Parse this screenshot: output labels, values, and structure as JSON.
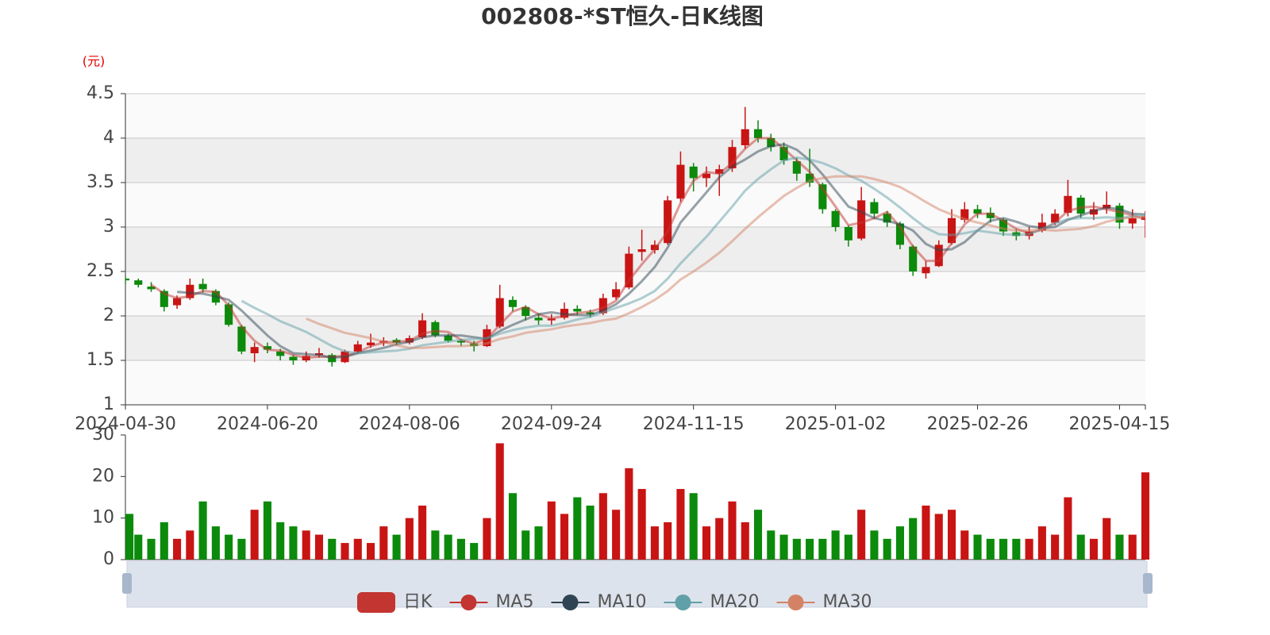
{
  "chart_data": [
    {
      "type": "candlestick",
      "title": "002808-*ST恒久-日K线图",
      "y_label": "(元)",
      "categories": [
        "2024-04-30",
        null,
        null,
        null,
        null,
        null,
        null,
        null,
        null,
        null,
        null,
        "2024-06-20",
        null,
        null,
        null,
        null,
        null,
        null,
        null,
        null,
        null,
        null,
        "2024-08-06",
        null,
        null,
        null,
        null,
        null,
        null,
        null,
        null,
        null,
        null,
        "2024-09-24",
        null,
        null,
        null,
        null,
        null,
        null,
        null,
        null,
        null,
        null,
        "2024-11-15",
        null,
        null,
        null,
        null,
        null,
        null,
        null,
        null,
        null,
        null,
        "2025-01-02",
        null,
        null,
        null,
        null,
        null,
        null,
        null,
        null,
        null,
        null,
        "2025-02-26",
        null,
        null,
        null,
        null,
        null,
        null,
        null,
        null,
        null,
        null,
        "2025-04-15",
        null,
        null
      ],
      "ylim": [
        1,
        4.5
      ],
      "yticks": [
        1,
        1.5,
        2,
        2.5,
        3,
        3.5,
        4,
        4.5
      ],
      "grid": true,
      "split_area": true,
      "up_color": "#c91414",
      "down_color": "#0b8a0b",
      "series": [
        {
          "name": "日K",
          "color": "#c23531",
          "values": [
            [
              2.42,
              2.4,
              2.35,
              2.45
            ],
            [
              2.4,
              2.35,
              2.32,
              2.42
            ],
            [
              2.33,
              2.3,
              2.27,
              2.38
            ],
            [
              2.28,
              2.1,
              2.05,
              2.3
            ],
            [
              2.12,
              2.2,
              2.08,
              2.23
            ],
            [
              2.2,
              2.35,
              2.18,
              2.42
            ],
            [
              2.36,
              2.3,
              2.26,
              2.42
            ],
            [
              2.28,
              2.15,
              2.12,
              2.3
            ],
            [
              2.13,
              1.9,
              1.88,
              2.15
            ],
            [
              1.88,
              1.6,
              1.57,
              1.9
            ],
            [
              1.58,
              1.65,
              1.48,
              1.7
            ],
            [
              1.66,
              1.62,
              1.58,
              1.7
            ],
            [
              1.6,
              1.55,
              1.5,
              1.63
            ],
            [
              1.54,
              1.5,
              1.45,
              1.56
            ],
            [
              1.5,
              1.55,
              1.48,
              1.6
            ],
            [
              1.56,
              1.58,
              1.53,
              1.64
            ],
            [
              1.56,
              1.48,
              1.43,
              1.58
            ],
            [
              1.48,
              1.6,
              1.47,
              1.62
            ],
            [
              1.6,
              1.68,
              1.58,
              1.72
            ],
            [
              1.67,
              1.7,
              1.64,
              1.8
            ],
            [
              1.7,
              1.72,
              1.66,
              1.76
            ],
            [
              1.73,
              1.7,
              1.67,
              1.75
            ],
            [
              1.7,
              1.75,
              1.68,
              1.78
            ],
            [
              1.76,
              1.95,
              1.74,
              2.03
            ],
            [
              1.93,
              1.78,
              1.76,
              1.95
            ],
            [
              1.78,
              1.72,
              1.7,
              1.8
            ],
            [
              1.72,
              1.7,
              1.66,
              1.74
            ],
            [
              1.69,
              1.66,
              1.6,
              1.72
            ],
            [
              1.66,
              1.85,
              1.65,
              1.9
            ],
            [
              1.88,
              2.2,
              1.86,
              2.35
            ],
            [
              2.18,
              2.1,
              2.05,
              2.22
            ],
            [
              2.1,
              2.0,
              1.95,
              2.12
            ],
            [
              1.98,
              1.95,
              1.9,
              2.02
            ],
            [
              1.95,
              1.97,
              1.9,
              2.02
            ],
            [
              1.98,
              2.08,
              1.96,
              2.15
            ],
            [
              2.08,
              2.05,
              2.01,
              2.12
            ],
            [
              2.04,
              2.02,
              1.98,
              2.07
            ],
            [
              2.03,
              2.2,
              2.01,
              2.25
            ],
            [
              2.21,
              2.3,
              2.18,
              2.38
            ],
            [
              2.32,
              2.7,
              2.3,
              2.78
            ],
            [
              2.72,
              2.75,
              2.62,
              2.97
            ],
            [
              2.74,
              2.8,
              2.7,
              2.85
            ],
            [
              2.82,
              3.3,
              2.8,
              3.35
            ],
            [
              3.32,
              3.7,
              3.28,
              3.85
            ],
            [
              3.68,
              3.55,
              3.4,
              3.72
            ],
            [
              3.55,
              3.6,
              3.45,
              3.68
            ],
            [
              3.6,
              3.65,
              3.35,
              3.7
            ],
            [
              3.66,
              3.9,
              3.62,
              3.98
            ],
            [
              3.92,
              4.1,
              3.88,
              4.35
            ],
            [
              4.1,
              4.0,
              3.95,
              4.2
            ],
            [
              4.0,
              3.9,
              3.85,
              4.05
            ],
            [
              3.9,
              3.75,
              3.7,
              3.95
            ],
            [
              3.74,
              3.6,
              3.52,
              3.78
            ],
            [
              3.6,
              3.5,
              3.45,
              3.88
            ],
            [
              3.48,
              3.2,
              3.15,
              3.5
            ],
            [
              3.18,
              3.0,
              2.95,
              3.2
            ],
            [
              3.0,
              2.85,
              2.78,
              3.02
            ],
            [
              2.87,
              3.3,
              2.85,
              3.45
            ],
            [
              3.28,
              3.15,
              3.1,
              3.32
            ],
            [
              3.15,
              3.05,
              3.0,
              3.18
            ],
            [
              3.04,
              2.8,
              2.75,
              3.06
            ],
            [
              2.78,
              2.5,
              2.45,
              2.8
            ],
            [
              2.48,
              2.55,
              2.42,
              2.62
            ],
            [
              2.56,
              2.8,
              2.55,
              2.85
            ],
            [
              2.82,
              3.1,
              2.8,
              3.2
            ],
            [
              3.08,
              3.2,
              3.05,
              3.28
            ],
            [
              3.2,
              3.15,
              3.1,
              3.25
            ],
            [
              3.16,
              3.1,
              3.05,
              3.22
            ],
            [
              3.08,
              2.95,
              2.9,
              3.1
            ],
            [
              2.94,
              2.9,
              2.85,
              2.98
            ],
            [
              2.9,
              2.95,
              2.86,
              3.0
            ],
            [
              2.96,
              3.05,
              2.94,
              3.15
            ],
            [
              3.05,
              3.15,
              3.02,
              3.2
            ],
            [
              3.16,
              3.35,
              3.12,
              3.53
            ],
            [
              3.33,
              3.15,
              3.1,
              3.36
            ],
            [
              3.14,
              3.2,
              3.08,
              3.28
            ],
            [
              3.21,
              3.25,
              3.15,
              3.4
            ],
            [
              3.24,
              3.05,
              2.98,
              3.27
            ],
            [
              3.04,
              3.1,
              2.98,
              3.2
            ],
            [
              3.08,
              3.12,
              2.88,
              3.18
            ]
          ]
        },
        {
          "name": "MA5",
          "color": "#c23531",
          "values": [
            null,
            null,
            2.35,
            2.25,
            2.2,
            2.22,
            2.28,
            2.27,
            2.12,
            1.88,
            1.72,
            1.62,
            1.61,
            1.56,
            1.53,
            1.54,
            1.54,
            1.55,
            1.59,
            1.66,
            1.7,
            1.71,
            1.72,
            1.8,
            1.83,
            1.82,
            1.73,
            1.69,
            1.74,
            1.9,
            2.05,
            2.1,
            2.02,
            1.97,
            2.0,
            2.03,
            2.05,
            2.09,
            2.17,
            2.4,
            2.58,
            2.75,
            2.95,
            3.27,
            3.52,
            3.62,
            3.6,
            3.72,
            3.88,
            4.0,
            4.0,
            3.88,
            3.75,
            3.62,
            3.43,
            3.23,
            3.02,
            3.05,
            3.1,
            3.17,
            3.0,
            2.78,
            2.62,
            2.62,
            2.82,
            3.03,
            3.15,
            3.15,
            3.07,
            2.98,
            2.93,
            2.97,
            3.05,
            3.18,
            3.22,
            3.23,
            3.2,
            3.17,
            3.13,
            3.09
          ]
        },
        {
          "name": "MA10",
          "color": "#2f4554",
          "values": [
            null,
            null,
            null,
            null,
            2.27,
            2.26,
            2.25,
            2.22,
            2.18,
            2.06,
            1.92,
            1.78,
            1.66,
            1.58,
            1.57,
            1.56,
            1.53,
            1.54,
            1.58,
            1.61,
            1.64,
            1.68,
            1.71,
            1.76,
            1.78,
            1.78,
            1.78,
            1.76,
            1.74,
            1.83,
            1.9,
            1.96,
            2.02,
            2.04,
            2.02,
            2.01,
            2.01,
            2.06,
            2.13,
            2.25,
            2.39,
            2.55,
            2.77,
            3.05,
            3.22,
            3.39,
            3.56,
            3.68,
            3.76,
            3.85,
            3.91,
            3.93,
            3.87,
            3.75,
            3.59,
            3.41,
            3.23,
            3.17,
            3.1,
            3.07,
            3.03,
            2.96,
            2.81,
            2.74,
            2.75,
            2.83,
            2.96,
            3.07,
            3.1,
            3.06,
            3.01,
            2.99,
            3.0,
            3.08,
            3.13,
            3.18,
            3.22,
            3.2,
            3.15,
            3.14
          ]
        },
        {
          "name": "MA20",
          "color": "#61a0a8",
          "values": [
            null,
            null,
            null,
            null,
            null,
            null,
            null,
            null,
            null,
            2.17,
            2.09,
            2.02,
            1.94,
            1.88,
            1.82,
            1.74,
            1.66,
            1.6,
            1.58,
            1.59,
            1.6,
            1.61,
            1.63,
            1.67,
            1.69,
            1.71,
            1.73,
            1.74,
            1.75,
            1.8,
            1.84,
            1.87,
            1.89,
            1.89,
            1.92,
            1.96,
            1.99,
            2.04,
            2.09,
            2.14,
            2.2,
            2.28,
            2.42,
            2.59,
            2.74,
            2.89,
            3.06,
            3.23,
            3.41,
            3.54,
            3.65,
            3.75,
            3.78,
            3.76,
            3.72,
            3.66,
            3.58,
            3.52,
            3.43,
            3.33,
            3.22,
            3.1,
            2.99,
            2.92,
            2.91,
            2.93,
            2.96,
            2.94,
            2.92,
            2.91,
            2.92,
            2.98,
            3.04,
            3.09,
            3.1,
            3.1,
            3.11,
            3.1,
            3.12,
            3.14
          ]
        },
        {
          "name": "MA30",
          "color": "#d48265",
          "values": [
            null,
            null,
            null,
            null,
            null,
            null,
            null,
            null,
            null,
            null,
            null,
            null,
            null,
            null,
            1.97,
            1.91,
            1.86,
            1.81,
            1.78,
            1.75,
            1.71,
            1.67,
            1.64,
            1.64,
            1.65,
            1.66,
            1.66,
            1.67,
            1.69,
            1.74,
            1.77,
            1.81,
            1.83,
            1.85,
            1.88,
            1.9,
            1.92,
            1.95,
            1.97,
            2.03,
            2.1,
            2.18,
            2.28,
            2.41,
            2.5,
            2.6,
            2.71,
            2.84,
            2.98,
            3.11,
            3.23,
            3.35,
            3.44,
            3.52,
            3.55,
            3.57,
            3.57,
            3.57,
            3.54,
            3.5,
            3.45,
            3.37,
            3.28,
            3.2,
            3.14,
            3.09,
            3.05,
            3.02,
            2.98,
            2.96,
            2.96,
            2.97,
            2.96,
            2.97,
            2.98,
            3.01,
            3.06,
            3.09,
            3.11,
            3.11
          ]
        }
      ]
    },
    {
      "type": "bar",
      "ylim": [
        0,
        30
      ],
      "yticks": [
        0,
        10,
        20,
        30
      ],
      "grid": false,
      "values": [
        11,
        6,
        5,
        9,
        5,
        7,
        14,
        8,
        6,
        5,
        12,
        14,
        9,
        8,
        7,
        6,
        5,
        4,
        5,
        4,
        8,
        6,
        10,
        13,
        7,
        6,
        5,
        4,
        10,
        28,
        16,
        7,
        8,
        14,
        11,
        15,
        13,
        16,
        12,
        22,
        17,
        8,
        9,
        17,
        16,
        8,
        10,
        14,
        9,
        12,
        7,
        6,
        5,
        5,
        5,
        7,
        6,
        12,
        7,
        5,
        8,
        10,
        13,
        11,
        12,
        7,
        6,
        5,
        5,
        5,
        5,
        8,
        6,
        15,
        6,
        5,
        10,
        6,
        6,
        21
      ]
    }
  ]
}
